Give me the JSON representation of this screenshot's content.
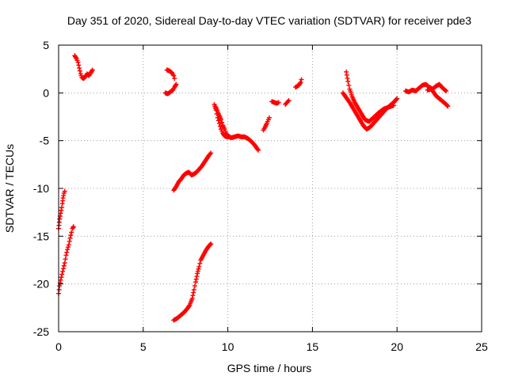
{
  "chart_data": {
    "type": "scatter",
    "title": "Day 351 of 2020, Sidereal Day-to-day VTEC variation (SDTVAR) for receiver pde3",
    "xlabel": "GPS time / hours",
    "ylabel": "SDTVAR / TECUs",
    "xlim": [
      0,
      25
    ],
    "ylim": [
      -25,
      5
    ],
    "x_ticks": [
      0,
      5,
      10,
      15,
      20,
      25
    ],
    "y_ticks": [
      -25,
      -20,
      -15,
      -10,
      -5,
      0,
      5
    ],
    "grid": true,
    "legend": "none",
    "marker": "plus",
    "colors": {
      "series": "#ff0000",
      "grid": "#a0a0a0",
      "axis": "#000000"
    },
    "series": [
      {
        "segments": [
          [
            [
              0.0,
              -14.2
            ],
            [
              0.06,
              -13.2
            ],
            [
              0.12,
              -12.6
            ],
            [
              0.18,
              -12.0
            ],
            [
              0.22,
              -11.6
            ],
            [
              0.26,
              -11.0
            ],
            [
              0.32,
              -10.5
            ],
            [
              0.36,
              -10.3
            ]
          ],
          [
            [
              0.0,
              -21.0
            ],
            [
              0.06,
              -20.2
            ],
            [
              0.12,
              -19.6
            ],
            [
              0.2,
              -19.0
            ],
            [
              0.28,
              -18.4
            ],
            [
              0.36,
              -17.8
            ],
            [
              0.44,
              -17.0
            ],
            [
              0.52,
              -16.4
            ],
            [
              0.6,
              -15.9
            ],
            [
              0.68,
              -15.2
            ],
            [
              0.76,
              -14.6
            ],
            [
              0.82,
              -14.2
            ],
            [
              0.88,
              -14.0
            ]
          ],
          [
            [
              0.95,
              3.9
            ],
            [
              1.05,
              3.6
            ],
            [
              1.15,
              3.2
            ],
            [
              1.22,
              2.6
            ],
            [
              1.3,
              2.0
            ],
            [
              1.38,
              1.6
            ],
            [
              1.48,
              1.5
            ],
            [
              1.58,
              1.7
            ],
            [
              1.68,
              2.0
            ],
            [
              1.8,
              1.8
            ],
            [
              1.9,
              2.1
            ],
            [
              2.0,
              2.4
            ]
          ],
          [
            [
              6.3,
              0.0
            ],
            [
              6.45,
              -0.1
            ],
            [
              6.6,
              0.1
            ],
            [
              6.75,
              0.3
            ],
            [
              6.85,
              0.6
            ],
            [
              6.95,
              0.9
            ]
          ],
          [
            [
              6.4,
              2.4
            ],
            [
              6.55,
              2.3
            ],
            [
              6.7,
              2.1
            ],
            [
              6.8,
              1.8
            ],
            [
              6.85,
              1.5
            ]
          ],
          [
            [
              6.8,
              -10.2
            ],
            [
              6.95,
              -9.8
            ],
            [
              7.1,
              -9.3
            ],
            [
              7.25,
              -9.0
            ],
            [
              7.4,
              -8.6
            ],
            [
              7.55,
              -8.4
            ],
            [
              7.7,
              -8.3
            ],
            [
              7.85,
              -8.6
            ],
            [
              8.0,
              -8.5
            ],
            [
              8.15,
              -8.3
            ],
            [
              8.3,
              -8.0
            ],
            [
              8.45,
              -7.7
            ],
            [
              8.6,
              -7.3
            ],
            [
              8.75,
              -6.9
            ],
            [
              8.9,
              -6.5
            ],
            [
              9.0,
              -6.3
            ]
          ],
          [
            [
              6.8,
              -23.8
            ],
            [
              7.0,
              -23.6
            ],
            [
              7.2,
              -23.3
            ],
            [
              7.4,
              -23.0
            ],
            [
              7.6,
              -22.6
            ],
            [
              7.75,
              -22.2
            ],
            [
              7.9,
              -21.5
            ],
            [
              8.0,
              -20.6
            ],
            [
              8.1,
              -19.8
            ],
            [
              8.2,
              -18.9
            ],
            [
              8.3,
              -18.2
            ],
            [
              8.4,
              -17.5
            ],
            [
              8.55,
              -17.0
            ],
            [
              8.7,
              -16.5
            ],
            [
              8.85,
              -16.1
            ],
            [
              9.0,
              -15.8
            ]
          ],
          [
            [
              9.2,
              -1.2
            ],
            [
              9.3,
              -1.8
            ],
            [
              9.4,
              -2.6
            ],
            [
              9.5,
              -3.2
            ],
            [
              9.6,
              -3.8
            ],
            [
              9.7,
              -4.2
            ],
            [
              9.8,
              -4.5
            ],
            [
              9.95,
              -4.6
            ],
            [
              10.1,
              -4.6
            ]
          ],
          [
            [
              9.3,
              -1.5
            ],
            [
              9.45,
              -2.2
            ],
            [
              9.6,
              -2.8
            ],
            [
              9.7,
              -3.4
            ],
            [
              9.8,
              -3.8
            ],
            [
              9.9,
              -4.2
            ],
            [
              10.0,
              -4.5
            ],
            [
              10.2,
              -4.7
            ],
            [
              10.4,
              -4.6
            ],
            [
              10.6,
              -4.5
            ],
            [
              10.8,
              -4.6
            ],
            [
              11.0,
              -4.6
            ],
            [
              11.2,
              -4.8
            ],
            [
              11.4,
              -5.1
            ],
            [
              11.6,
              -5.5
            ],
            [
              11.8,
              -6.0
            ]
          ],
          [
            [
              12.1,
              -3.9
            ],
            [
              12.2,
              -3.6
            ],
            [
              12.3,
              -3.2
            ],
            [
              12.4,
              -2.8
            ],
            [
              12.45,
              -2.6
            ]
          ],
          [
            [
              12.6,
              -0.9
            ],
            [
              12.75,
              -1.0
            ],
            [
              12.9,
              -1.1
            ],
            [
              13.0,
              -1.0
            ]
          ],
          [
            [
              13.4,
              -1.2
            ],
            [
              13.5,
              -1.0
            ],
            [
              13.6,
              -0.8
            ]
          ],
          [
            [
              14.0,
              0.6
            ],
            [
              14.1,
              0.7
            ],
            [
              14.2,
              0.8
            ],
            [
              14.3,
              1.1
            ],
            [
              14.35,
              1.4
            ]
          ],
          [
            [
              16.8,
              0.0
            ],
            [
              17.0,
              -0.5
            ],
            [
              17.2,
              -1.0
            ],
            [
              17.4,
              -1.6
            ],
            [
              17.6,
              -2.2
            ],
            [
              17.8,
              -2.8
            ],
            [
              18.0,
              -3.4
            ],
            [
              18.2,
              -3.8
            ],
            [
              18.4,
              -3.6
            ],
            [
              18.6,
              -3.2
            ],
            [
              18.8,
              -2.8
            ],
            [
              19.0,
              -2.4
            ],
            [
              19.2,
              -2.0
            ],
            [
              19.4,
              -1.6
            ],
            [
              19.6,
              -1.3
            ],
            [
              19.8,
              -1.0
            ],
            [
              20.0,
              -0.6
            ]
          ],
          [
            [
              17.0,
              2.2
            ],
            [
              17.1,
              1.2
            ],
            [
              17.2,
              0.4
            ],
            [
              17.35,
              -0.4
            ],
            [
              17.5,
              -1.0
            ],
            [
              17.7,
              -1.6
            ],
            [
              17.9,
              -2.2
            ],
            [
              18.1,
              -2.8
            ],
            [
              18.35,
              -3.0
            ],
            [
              18.6,
              -2.6
            ],
            [
              18.9,
              -2.1
            ],
            [
              19.2,
              -1.7
            ],
            [
              19.5,
              -1.5
            ],
            [
              19.8,
              -1.3
            ]
          ],
          [
            [
              20.5,
              0.2
            ],
            [
              20.7,
              0.1
            ],
            [
              20.9,
              0.3
            ],
            [
              21.1,
              0.2
            ],
            [
              21.3,
              0.5
            ],
            [
              21.5,
              0.8
            ],
            [
              21.7,
              0.9
            ],
            [
              21.9,
              0.6
            ],
            [
              22.1,
              0.4
            ],
            [
              22.3,
              0.7
            ],
            [
              22.5,
              0.9
            ],
            [
              22.7,
              0.5
            ],
            [
              22.9,
              0.2
            ]
          ],
          [
            [
              21.8,
              0.3
            ],
            [
              22.0,
              0.4
            ],
            [
              22.15,
              0.1
            ],
            [
              22.3,
              -0.3
            ],
            [
              22.5,
              -0.6
            ],
            [
              22.7,
              -0.9
            ],
            [
              22.9,
              -1.2
            ],
            [
              23.0,
              -1.4
            ]
          ]
        ]
      }
    ]
  }
}
